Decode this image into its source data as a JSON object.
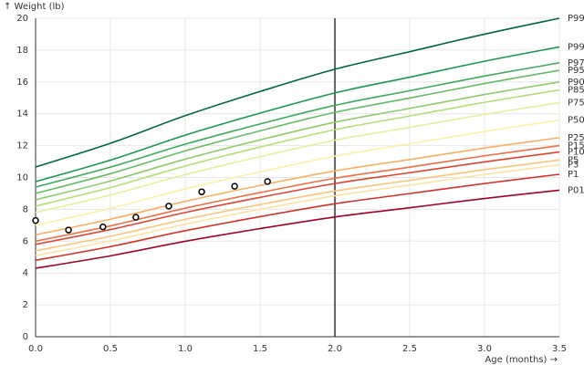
{
  "chart_data": {
    "type": "line",
    "y_label": "↑ Weight (lb)",
    "x_label": "Age (months) →",
    "x": [
      0,
      0.5,
      1,
      1.5,
      2,
      2.5,
      3,
      3.5
    ],
    "series": [
      {
        "name": "P99",
        "color": "#006837",
        "values": [
          10.66,
          12.15,
          13.88,
          15.4,
          16.8,
          17.9,
          19.0,
          20.0
        ]
      },
      {
        "name": "P99",
        "color": "#1a9850",
        "values": [
          9.74,
          11.09,
          12.66,
          14.04,
          15.31,
          16.3,
          17.3,
          18.2
        ]
      },
      {
        "name": "P97",
        "color": "#3faa59",
        "values": [
          9.4,
          10.65,
          12.09,
          13.36,
          14.53,
          15.45,
          16.37,
          17.2
        ]
      },
      {
        "name": "P95",
        "color": "#66bd63",
        "values": [
          9.0,
          10.24,
          11.67,
          12.93,
          14.09,
          14.99,
          15.9,
          16.73
        ]
      },
      {
        "name": "P90",
        "color": "#8ccd6b",
        "values": [
          8.6,
          9.78,
          11.15,
          12.36,
          13.47,
          14.34,
          15.21,
          16.0
        ]
      },
      {
        "name": "P85",
        "color": "#b3df76",
        "values": [
          8.2,
          9.37,
          10.72,
          11.91,
          13.0,
          13.86,
          14.72,
          15.5
        ]
      },
      {
        "name": "P75",
        "color": "#e3f1a0",
        "values": [
          7.8,
          8.9,
          10.18,
          11.31,
          12.34,
          13.15,
          13.96,
          14.7
        ]
      },
      {
        "name": "P50",
        "color": "#fbf0a8",
        "values": [
          7.0,
          8.06,
          9.28,
          10.35,
          11.34,
          12.12,
          12.89,
          13.6
        ]
      },
      {
        "name": "P25",
        "color": "#fdae61",
        "values": [
          6.4,
          7.38,
          8.5,
          9.5,
          10.41,
          11.13,
          11.85,
          12.5
        ]
      },
      {
        "name": "P15",
        "color": "#f46d43",
        "values": [
          6.0,
          6.96,
          8.07,
          9.05,
          9.95,
          10.65,
          11.36,
          12.0
        ]
      },
      {
        "name": "P10",
        "color": "#e0422f",
        "values": [
          5.8,
          6.73,
          7.8,
          8.75,
          9.62,
          10.3,
          10.98,
          11.6
        ]
      },
      {
        "name": "P5",
        "color": "#fdc47a",
        "values": [
          5.4,
          6.31,
          7.37,
          8.3,
          9.15,
          9.82,
          10.49,
          11.1
        ]
      },
      {
        "name": "P3",
        "color": "#fee3a0",
        "values": [
          5.1,
          6.01,
          7.07,
          8.0,
          8.85,
          9.52,
          10.19,
          10.8
        ]
      },
      {
        "name": "P1",
        "color": "#d73027",
        "values": [
          4.8,
          5.66,
          6.66,
          7.54,
          8.35,
          8.99,
          9.62,
          10.2
        ]
      },
      {
        "name": "P01",
        "color": "#a50026",
        "values": [
          4.3,
          5.08,
          5.99,
          6.79,
          7.52,
          8.1,
          8.68,
          9.2
        ]
      }
    ],
    "points": {
      "x": [
        0,
        0.22,
        0.45,
        0.67,
        0.89,
        1.11,
        1.33,
        1.55
      ],
      "values": [
        7.3,
        6.7,
        6.9,
        7.5,
        8.2,
        9.1,
        9.45,
        9.75
      ]
    },
    "reference_x": 2,
    "xlim": [
      0,
      3.5
    ],
    "ylim": [
      0,
      20
    ],
    "xticks": [
      {
        "value": 0,
        "label": "0.0"
      },
      0.5,
      {
        "value": 1,
        "label": "1.0"
      },
      1.5,
      {
        "value": 2,
        "label": "2.0"
      },
      2.5,
      {
        "value": 3,
        "label": "3.0"
      },
      3.5
    ],
    "yticks": [
      0,
      2,
      4,
      6,
      8,
      10,
      12,
      14,
      16,
      18,
      20
    ],
    "grid": true
  }
}
